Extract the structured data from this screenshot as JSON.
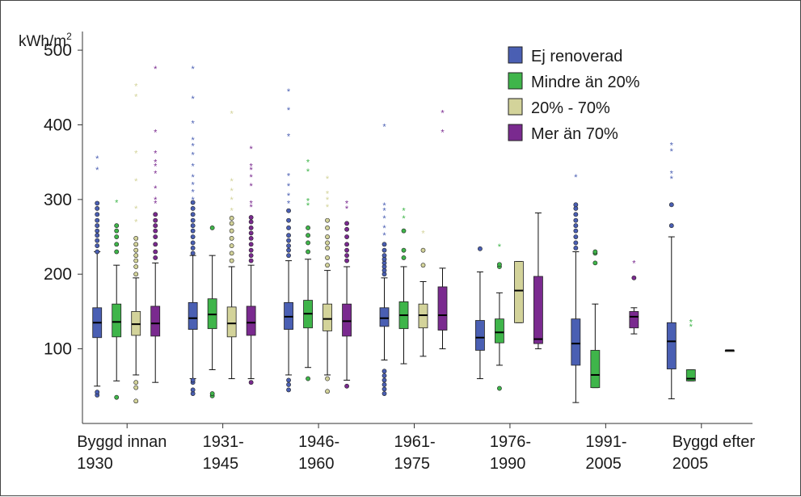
{
  "chart_data": {
    "type": "box",
    "ylabel": "kWh/m",
    "ylabel_superscript": "2",
    "ylim": [
      0,
      525
    ],
    "yticks": [
      "100",
      "200",
      "300",
      "400",
      "500"
    ],
    "ytick_values": [
      100,
      200,
      300,
      400,
      500
    ],
    "legend_position": "top-right",
    "categories": [
      [
        "Byggd innan",
        "1930"
      ],
      [
        "1931-",
        "1945"
      ],
      [
        "1946-",
        "1960"
      ],
      [
        "1961-",
        "1975"
      ],
      [
        "1976-",
        "1990"
      ],
      [
        "1991-",
        "2005"
      ],
      [
        "Byggd efter",
        "2005"
      ]
    ],
    "series": [
      {
        "name": "Ej renoverad",
        "color": "#4a5fb3",
        "boxes": [
          {
            "whislo": 50,
            "q1": 115,
            "med": 135,
            "q3": 155,
            "whishi": 230,
            "outliers": [
              38,
              42,
              230,
              238,
              245,
              252,
              258,
              265,
              272,
              280,
              288,
              295
            ],
            "extremes": [
              340,
              355
            ]
          },
          {
            "whislo": 60,
            "q1": 126,
            "med": 141,
            "q3": 162,
            "whishi": 225,
            "outliers": [
              40,
              45,
              55,
              58,
              228,
              235,
              242,
              250,
              258,
              265,
              272,
              280,
              288,
              296
            ],
            "extremes": [
              300,
              310,
              320,
              330,
              345,
              360,
              372,
              380,
              402,
              435,
              475
            ]
          },
          {
            "whislo": 65,
            "q1": 126,
            "med": 143,
            "q3": 162,
            "whishi": 218,
            "outliers": [
              45,
              52,
              58,
              225,
              232,
              238,
              245,
              252,
              262,
              272,
              285
            ],
            "extremes": [
              295,
              305,
              318,
              332,
              385,
              420,
              445
            ]
          },
          {
            "whislo": 85,
            "q1": 130,
            "med": 141,
            "q3": 155,
            "whishi": 195,
            "outliers": [
              40,
              46,
              52,
              58,
              64,
              70,
              200,
              205,
              210,
              215,
              220,
              225,
              232,
              240
            ],
            "extremes": [
              252,
              262,
              275,
              285,
              292,
              398
            ]
          },
          {
            "whislo": 60,
            "q1": 98,
            "med": 115,
            "q3": 138,
            "whishi": 203,
            "outliers": [
              234
            ],
            "extremes": []
          },
          {
            "whislo": 28,
            "q1": 78,
            "med": 107,
            "q3": 140,
            "whishi": 230,
            "outliers": [
              235,
              242,
              250,
              258,
              265,
              272,
              280,
              288,
              293
            ],
            "extremes": [
              330
            ]
          },
          {
            "whislo": 33,
            "q1": 73,
            "med": 110,
            "q3": 135,
            "whishi": 250,
            "outliers": [
              265,
              293
            ],
            "extremes": [
              328,
              335,
              365,
              373
            ]
          }
        ]
      },
      {
        "name": "Mindre än 20%",
        "color": "#3fb54a",
        "boxes": [
          {
            "whislo": 57,
            "q1": 116,
            "med": 136,
            "q3": 160,
            "whishi": 212,
            "outliers": [
              35,
              230,
              240,
              250,
              258,
              265
            ],
            "extremes": [
              296
            ]
          },
          {
            "whislo": 72,
            "q1": 127,
            "med": 146,
            "q3": 167,
            "whishi": 225,
            "outliers": [
              37,
              40,
              262
            ],
            "extremes": []
          },
          {
            "whislo": 75,
            "q1": 128,
            "med": 147,
            "q3": 165,
            "whishi": 220,
            "outliers": [
              60,
              230,
              242,
              252,
              262
            ],
            "extremes": [
              292,
              298,
              338,
              350
            ]
          },
          {
            "whislo": 80,
            "q1": 127,
            "med": 145,
            "q3": 163,
            "whishi": 210,
            "outliers": [
              222,
              232,
              258
            ],
            "extremes": [
              275,
              285
            ]
          },
          {
            "whislo": 78,
            "q1": 108,
            "med": 122,
            "q3": 140,
            "whishi": 175,
            "outliers": [
              47,
              210,
              213
            ],
            "extremes": [
              237
            ]
          },
          {
            "whislo": 48,
            "q1": 48,
            "med": 65,
            "q3": 98,
            "whishi": 160,
            "outliers": [
              215,
              228,
              230
            ],
            "extremes": []
          },
          {
            "whislo": 57,
            "q1": 57,
            "med": 60,
            "q3": 72,
            "whishi": 72,
            "outliers": [],
            "extremes": [
              130,
              136
            ]
          }
        ]
      },
      {
        "name": "20% - 70%",
        "color": "#d3d39a",
        "boxes": [
          {
            "whislo": 65,
            "q1": 118,
            "med": 133,
            "q3": 150,
            "whishi": 195,
            "outliers": [
              30,
              48,
              55,
              200,
              210,
              218,
              225,
              232,
              240,
              248
            ],
            "extremes": [
              270,
              288,
              325,
              362,
              438,
              452
            ]
          },
          {
            "whislo": 60,
            "q1": 116,
            "med": 134,
            "q3": 156,
            "whishi": 210,
            "outliers": [
              218,
              228,
              238,
              248,
              258,
              268,
              275
            ],
            "extremes": [
              285,
              300,
              312,
              325,
              415
            ]
          },
          {
            "whislo": 65,
            "q1": 124,
            "med": 140,
            "q3": 160,
            "whishi": 205,
            "outliers": [
              43,
              60,
              212,
              222,
              235,
              242,
              250,
              262,
              272
            ],
            "extremes": [
              290,
              300,
              308,
              328
            ]
          },
          {
            "whislo": 90,
            "q1": 128,
            "med": 145,
            "q3": 160,
            "whishi": 190,
            "outliers": [
              212,
              232
            ],
            "extremes": [
              255
            ]
          },
          {
            "whislo": 135,
            "q1": 135,
            "med": 178,
            "q3": 217,
            "whishi": 217,
            "outliers": [],
            "extremes": []
          },
          {
            "whislo": 98,
            "q1": 98,
            "med": 98,
            "q3": 98,
            "whishi": 98,
            "outliers": [],
            "extremes": []
          }
        ],
        "box_positions": [
          0,
          1,
          2,
          3,
          4,
          6
        ]
      },
      {
        "name": "Mer än 70%",
        "color": "#7a2a8f",
        "boxes": [
          {
            "whislo": 55,
            "q1": 117,
            "med": 134,
            "q3": 157,
            "whishi": 215,
            "outliers": [
              222,
              230,
              240,
              250,
              258,
              265,
              272,
              280
            ],
            "extremes": [
              295,
              300,
              315,
              335,
              345,
              350,
              362,
              390,
              475
            ]
          },
          {
            "whislo": 60,
            "q1": 118,
            "med": 135,
            "q3": 157,
            "whishi": 212,
            "outliers": [
              55,
              218,
              225,
              232,
              240,
              248,
              255,
              262,
              270,
              276
            ],
            "extremes": [
              290,
              295,
              318,
              330,
              340,
              345,
              368
            ]
          },
          {
            "whislo": 58,
            "q1": 117,
            "med": 137,
            "q3": 160,
            "whishi": 210,
            "outliers": [
              50,
              218,
              225,
              232,
              240,
              250,
              260,
              268
            ],
            "extremes": [
              288,
              295
            ]
          },
          {
            "whislo": 100,
            "q1": 125,
            "med": 145,
            "q3": 183,
            "whishi": 208,
            "outliers": [],
            "extremes": [
              390,
              416
            ]
          },
          {
            "whislo": 100,
            "q1": 107,
            "med": 113,
            "q3": 197,
            "whishi": 282,
            "outliers": [],
            "extremes": []
          },
          {
            "whislo": 120,
            "q1": 128,
            "med": 143,
            "q3": 150,
            "whishi": 155,
            "outliers": [
              195
            ],
            "extremes": [
              215
            ]
          }
        ],
        "box_positions": [
          0,
          1,
          2,
          3,
          4,
          5
        ]
      }
    ]
  }
}
